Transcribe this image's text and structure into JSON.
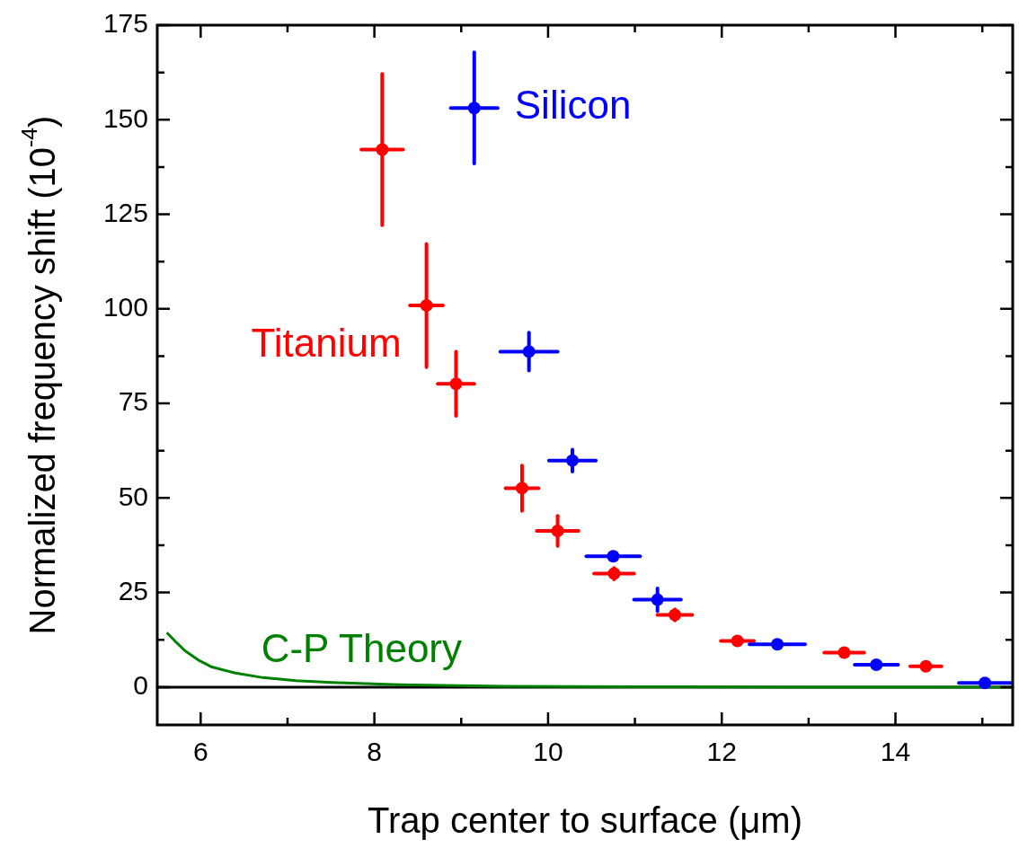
{
  "chart_data": {
    "type": "scatter",
    "xlabel": "Trap center to surface (μm)",
    "ylabel": "Normalized frequency shift (10$^{-4}$)",
    "xlim": [
      5.5,
      15.35
    ],
    "ylim": [
      -10,
      175
    ],
    "xticks": [
      6,
      8,
      10,
      12,
      14
    ],
    "yticks": [
      0,
      25,
      50,
      75,
      100,
      125,
      150,
      175
    ],
    "marker": "circle",
    "grid": false,
    "legend": false,
    "ref_lines": [
      {
        "axis": "y",
        "value": 0,
        "color": "#000000"
      }
    ],
    "series": [
      {
        "name": "Titanium",
        "color": "#ff0000",
        "x": [
          8.09,
          8.6,
          8.94,
          9.7,
          10.11,
          10.76,
          11.46,
          12.18,
          13.41,
          14.35
        ],
        "values": [
          142.1,
          100.9,
          80.2,
          52.6,
          41.3,
          30.0,
          19.1,
          12.2,
          9.1,
          5.5
        ],
        "errors": [
          20,
          16.3,
          8.5,
          6,
          4,
          1.5,
          1.5,
          null,
          null,
          null
        ],
        "xerrors": [
          0.24,
          0.19,
          0.21,
          0.19,
          0.24,
          0.23,
          0.2,
          0.19,
          0.23,
          0.18
        ]
      },
      {
        "name": "Silicon",
        "color": "#0000ff",
        "x": [
          9.15,
          9.78,
          10.28,
          10.75,
          11.26,
          12.64,
          13.78,
          15.03
        ],
        "values": [
          153.1,
          88.7,
          59.9,
          34.6,
          23.1,
          11.3,
          5.9,
          1.1
        ],
        "errors": [
          14.7,
          5,
          2.9,
          null,
          3,
          null,
          null,
          null
        ],
        "xerrors": [
          0.27,
          0.33,
          0.27,
          0.31,
          0.27,
          0.32,
          0.25,
          0.3
        ]
      },
      {
        "name": "C-P Theory",
        "type": "line",
        "marker": "none",
        "color": "#008000",
        "x": [
          5.61,
          5.72,
          5.82,
          5.97,
          6.13,
          6.4,
          6.72,
          7.1,
          7.51,
          8.29,
          9.5,
          11,
          13,
          15.35
        ],
        "values": [
          14.4,
          11.8,
          9.6,
          7.2,
          5.3,
          3.7,
          2.5,
          1.7,
          1.2,
          0.6,
          0.2,
          0.1,
          0.0,
          0.0
        ]
      }
    ]
  }
}
